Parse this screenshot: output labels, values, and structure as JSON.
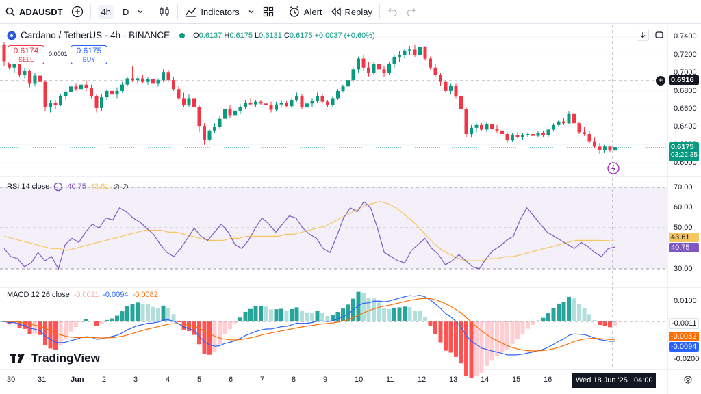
{
  "toolbar": {
    "symbol": "ADAUSDT",
    "timeframe_active": "4h",
    "timeframe_other": "D",
    "indicators_label": "Indicators",
    "alert_label": "Alert",
    "replay_label": "Replay"
  },
  "legend": {
    "title": "Cardano / TetherUS · 4h · BINANCE",
    "o_label": "O",
    "o": "0.6137",
    "h_label": "H",
    "h": "0.6175",
    "l_label": "L",
    "l": "0.6131",
    "c_label": "C",
    "c": "0.6175",
    "change": "+0.0037 (+0.60%)",
    "sell_price": "0.6174",
    "sell_label": "SELL",
    "spread": "0.0001",
    "buy_price": "0.6175",
    "buy_label": "BUY"
  },
  "price_axis": {
    "ticks": [
      "0.7400",
      "0.7200",
      "0.7000",
      "0.6800",
      "0.6600",
      "0.6400",
      "0.6200",
      "0.6000"
    ],
    "crosshair_value": "0.6916",
    "last_price": "0.6175",
    "countdown": "03:22:35"
  },
  "rsi": {
    "label": "RSI 14 close",
    "value1": "40.75",
    "value2": "43.61",
    "extra": "∅ ∅",
    "ticks": [
      "70.00",
      "60.00",
      "50.00",
      "30.00"
    ],
    "tag_ma": "43.61",
    "tag_rsi": "40.75"
  },
  "macd": {
    "label": "MACD 12 26 close",
    "hist": "-0.0011",
    "macd": "-0.0094",
    "signal": "-0.0082",
    "ticks": [
      "0.0100",
      "-0.0200"
    ],
    "tag_hist": "-0.0011",
    "tag_signal": "-0.0082",
    "tag_macd": "-0.0094"
  },
  "time_axis": {
    "labels": [
      "30",
      "31",
      "Jun",
      "2",
      "3",
      "4",
      "5",
      "6",
      "7",
      "8",
      "9",
      "10",
      "11",
      "12",
      "13",
      "14",
      "15",
      "16"
    ],
    "crosshair_time": "Wed 18 Jun '25   04:00"
  },
  "brand": "TradingView",
  "colors": {
    "up": "#089981",
    "down": "#f23645",
    "rsi": "#7e57c2",
    "rsi_ma": "#f7c560",
    "macd": "#2962ff",
    "signal": "#ff6d00"
  },
  "chart_data": {
    "type": "candlestick",
    "candles": [
      [
        0.731,
        0.734,
        0.708,
        0.713
      ],
      [
        0.713,
        0.722,
        0.704,
        0.706
      ],
      [
        0.706,
        0.716,
        0.7,
        0.712
      ],
      [
        0.712,
        0.714,
        0.695,
        0.698
      ],
      [
        0.698,
        0.706,
        0.694,
        0.702
      ],
      [
        0.702,
        0.703,
        0.684,
        0.688
      ],
      [
        0.688,
        0.7,
        0.685,
        0.697
      ],
      [
        0.697,
        0.699,
        0.685,
        0.69
      ],
      [
        0.69,
        0.692,
        0.657,
        0.662
      ],
      [
        0.662,
        0.67,
        0.656,
        0.667
      ],
      [
        0.667,
        0.67,
        0.66,
        0.664
      ],
      [
        0.664,
        0.676,
        0.663,
        0.674
      ],
      [
        0.674,
        0.68,
        0.67,
        0.679
      ],
      [
        0.679,
        0.686,
        0.676,
        0.685
      ],
      [
        0.685,
        0.688,
        0.68,
        0.682
      ],
      [
        0.682,
        0.689,
        0.679,
        0.687
      ],
      [
        0.687,
        0.692,
        0.68,
        0.683
      ],
      [
        0.683,
        0.687,
        0.672,
        0.674
      ],
      [
        0.674,
        0.676,
        0.656,
        0.661
      ],
      [
        0.661,
        0.676,
        0.658,
        0.673
      ],
      [
        0.673,
        0.682,
        0.67,
        0.68
      ],
      [
        0.68,
        0.685,
        0.674,
        0.676
      ],
      [
        0.676,
        0.684,
        0.672,
        0.68
      ],
      [
        0.68,
        0.69,
        0.678,
        0.687
      ],
      [
        0.687,
        0.696,
        0.685,
        0.694
      ],
      [
        0.694,
        0.708,
        0.69,
        0.692
      ],
      [
        0.692,
        0.696,
        0.688,
        0.694
      ],
      [
        0.694,
        0.698,
        0.689,
        0.69
      ],
      [
        0.69,
        0.695,
        0.687,
        0.693
      ],
      [
        0.693,
        0.696,
        0.688,
        0.688
      ],
      [
        0.688,
        0.694,
        0.685,
        0.692
      ],
      [
        0.692,
        0.704,
        0.69,
        0.701
      ],
      [
        0.701,
        0.703,
        0.69,
        0.692
      ],
      [
        0.692,
        0.696,
        0.68,
        0.682
      ],
      [
        0.682,
        0.686,
        0.67,
        0.672
      ],
      [
        0.672,
        0.678,
        0.662,
        0.664
      ],
      [
        0.664,
        0.676,
        0.662,
        0.672
      ],
      [
        0.672,
        0.676,
        0.658,
        0.662
      ],
      [
        0.662,
        0.664,
        0.634,
        0.641
      ],
      [
        0.641,
        0.644,
        0.62,
        0.626
      ],
      [
        0.626,
        0.638,
        0.624,
        0.636
      ],
      [
        0.636,
        0.644,
        0.633,
        0.64
      ],
      [
        0.64,
        0.652,
        0.638,
        0.649
      ],
      [
        0.649,
        0.663,
        0.646,
        0.66
      ],
      [
        0.66,
        0.664,
        0.65,
        0.653
      ],
      [
        0.653,
        0.66,
        0.648,
        0.658
      ],
      [
        0.658,
        0.665,
        0.654,
        0.662
      ],
      [
        0.662,
        0.67,
        0.66,
        0.667
      ],
      [
        0.667,
        0.672,
        0.664,
        0.665
      ],
      [
        0.665,
        0.67,
        0.662,
        0.668
      ],
      [
        0.668,
        0.67,
        0.664,
        0.666
      ],
      [
        0.666,
        0.669,
        0.661,
        0.664
      ],
      [
        0.664,
        0.668,
        0.656,
        0.659
      ],
      [
        0.659,
        0.668,
        0.657,
        0.665
      ],
      [
        0.665,
        0.67,
        0.662,
        0.667
      ],
      [
        0.667,
        0.669,
        0.662,
        0.663
      ],
      [
        0.663,
        0.672,
        0.661,
        0.67
      ],
      [
        0.67,
        0.678,
        0.668,
        0.674
      ],
      [
        0.674,
        0.676,
        0.66,
        0.662
      ],
      [
        0.662,
        0.668,
        0.658,
        0.666
      ],
      [
        0.666,
        0.672,
        0.662,
        0.669
      ],
      [
        0.669,
        0.678,
        0.667,
        0.674
      ],
      [
        0.674,
        0.677,
        0.666,
        0.668
      ],
      [
        0.668,
        0.67,
        0.662,
        0.664
      ],
      [
        0.664,
        0.674,
        0.662,
        0.672
      ],
      [
        0.672,
        0.682,
        0.67,
        0.68
      ],
      [
        0.68,
        0.687,
        0.678,
        0.685
      ],
      [
        0.685,
        0.694,
        0.683,
        0.692
      ],
      [
        0.692,
        0.706,
        0.69,
        0.704
      ],
      [
        0.704,
        0.718,
        0.7,
        0.716
      ],
      [
        0.716,
        0.72,
        0.702,
        0.706
      ],
      [
        0.706,
        0.712,
        0.696,
        0.7
      ],
      [
        0.7,
        0.712,
        0.698,
        0.71
      ],
      [
        0.71,
        0.714,
        0.702,
        0.704
      ],
      [
        0.704,
        0.708,
        0.696,
        0.7
      ],
      [
        0.7,
        0.712,
        0.698,
        0.71
      ],
      [
        0.71,
        0.72,
        0.706,
        0.718
      ],
      [
        0.718,
        0.724,
        0.712,
        0.72
      ],
      [
        0.72,
        0.727,
        0.716,
        0.725
      ],
      [
        0.725,
        0.73,
        0.72,
        0.726
      ],
      [
        0.726,
        0.731,
        0.718,
        0.72
      ],
      [
        0.72,
        0.732,
        0.715,
        0.729
      ],
      [
        0.729,
        0.73,
        0.714,
        0.716
      ],
      [
        0.716,
        0.718,
        0.704,
        0.706
      ],
      [
        0.706,
        0.71,
        0.696,
        0.698
      ],
      [
        0.698,
        0.7,
        0.686,
        0.69
      ],
      [
        0.69,
        0.692,
        0.678,
        0.68
      ],
      [
        0.68,
        0.688,
        0.676,
        0.686
      ],
      [
        0.686,
        0.688,
        0.672,
        0.674
      ],
      [
        0.674,
        0.676,
        0.656,
        0.66
      ],
      [
        0.66,
        0.662,
        0.628,
        0.632
      ],
      [
        0.632,
        0.642,
        0.628,
        0.639
      ],
      [
        0.639,
        0.644,
        0.634,
        0.642
      ],
      [
        0.642,
        0.644,
        0.636,
        0.637
      ],
      [
        0.637,
        0.645,
        0.634,
        0.643
      ],
      [
        0.643,
        0.646,
        0.635,
        0.638
      ],
      [
        0.638,
        0.642,
        0.633,
        0.636
      ],
      [
        0.636,
        0.638,
        0.63,
        0.632
      ],
      [
        0.632,
        0.634,
        0.622,
        0.625
      ],
      [
        0.625,
        0.633,
        0.623,
        0.631
      ],
      [
        0.631,
        0.634,
        0.627,
        0.629
      ],
      [
        0.629,
        0.633,
        0.626,
        0.631
      ],
      [
        0.631,
        0.634,
        0.628,
        0.632
      ],
      [
        0.632,
        0.635,
        0.629,
        0.63
      ],
      [
        0.63,
        0.635,
        0.628,
        0.633
      ],
      [
        0.633,
        0.636,
        0.629,
        0.631
      ],
      [
        0.631,
        0.638,
        0.629,
        0.637
      ],
      [
        0.637,
        0.644,
        0.635,
        0.642
      ],
      [
        0.642,
        0.648,
        0.64,
        0.646
      ],
      [
        0.646,
        0.65,
        0.642,
        0.644
      ],
      [
        0.644,
        0.657,
        0.643,
        0.655
      ],
      [
        0.655,
        0.656,
        0.642,
        0.644
      ],
      [
        0.644,
        0.645,
        0.632,
        0.634
      ],
      [
        0.634,
        0.64,
        0.63,
        0.632
      ],
      [
        0.632,
        0.636,
        0.622,
        0.624
      ],
      [
        0.624,
        0.628,
        0.616,
        0.618
      ],
      [
        0.618,
        0.622,
        0.61,
        0.614
      ],
      [
        0.614,
        0.62,
        0.611,
        0.618
      ],
      [
        0.618,
        0.619,
        0.612,
        0.6137
      ],
      [
        0.6137,
        0.6175,
        0.6131,
        0.6175
      ]
    ],
    "rsi": [
      40,
      36,
      35,
      31,
      33,
      38,
      34,
      36,
      30,
      42,
      45,
      43,
      48,
      52,
      50,
      55,
      54,
      60,
      58,
      55,
      53,
      50,
      47,
      42,
      38,
      36,
      40,
      45,
      50,
      46,
      44,
      48,
      52,
      48,
      42,
      40,
      44,
      50,
      55,
      52,
      48,
      52,
      56,
      55,
      50,
      47,
      45,
      40,
      38,
      46,
      55,
      60,
      58,
      63,
      60,
      50,
      38,
      36,
      34,
      33,
      39,
      42,
      45,
      40,
      37,
      32,
      34,
      37,
      34,
      31,
      30,
      35,
      39,
      41,
      44,
      46,
      54,
      60,
      56,
      52,
      48,
      46,
      44,
      42,
      40,
      43,
      41,
      38,
      36,
      40,
      40.75
    ],
    "rsi_ma": [
      46,
      45,
      44,
      43,
      42,
      41,
      40,
      40,
      39,
      40,
      41,
      42,
      43,
      44,
      45,
      46,
      47,
      48,
      49,
      49,
      49,
      48,
      48,
      47,
      46,
      45,
      44,
      44,
      44,
      45,
      45,
      46,
      46,
      46,
      46,
      46,
      47,
      47,
      48,
      49,
      50,
      51,
      53,
      55,
      57,
      59,
      61,
      62,
      63,
      62,
      60,
      57,
      54,
      50,
      46,
      42,
      39,
      37,
      35,
      34,
      34,
      34,
      35,
      35,
      36,
      36,
      37,
      38,
      39,
      40,
      41,
      42,
      43,
      44,
      44,
      44,
      44,
      43.8,
      43.61
    ]
  }
}
